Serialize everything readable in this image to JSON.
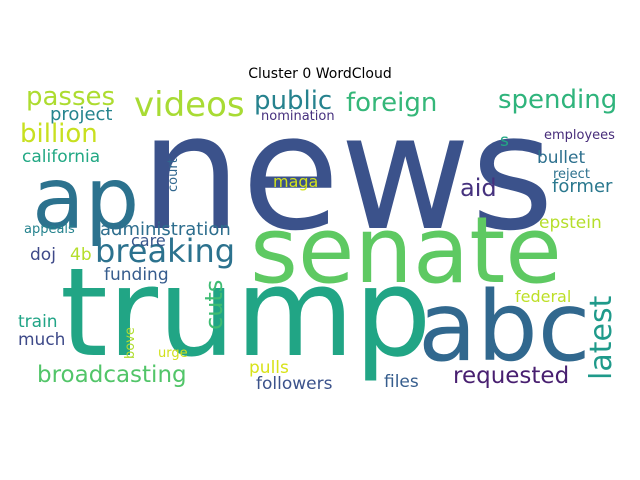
{
  "title": "Cluster 0 WordCloud",
  "words": [
    {
      "text": "news",
      "color": "#3b528b"
    },
    {
      "text": "senate",
      "color": "#5ec962"
    },
    {
      "text": "trump",
      "color": "#21a585"
    },
    {
      "text": "abc",
      "color": "#31688e"
    },
    {
      "text": "ap",
      "color": "#2c728e"
    },
    {
      "text": "videos",
      "color": "#a8db34"
    },
    {
      "text": "breaking",
      "color": "#2c728e"
    },
    {
      "text": "public",
      "color": "#26828e"
    },
    {
      "text": "foreign",
      "color": "#35b779"
    },
    {
      "text": "spending",
      "color": "#2fb47c"
    },
    {
      "text": "passes",
      "color": "#addc30"
    },
    {
      "text": "billion",
      "color": "#c8e020"
    },
    {
      "text": "project",
      "color": "#25848e"
    },
    {
      "text": "california",
      "color": "#22a884"
    },
    {
      "text": "latest",
      "color": "#1f9a8a"
    },
    {
      "text": "aid",
      "color": "#46327e"
    },
    {
      "text": "former",
      "color": "#2a788e"
    },
    {
      "text": "bullet",
      "color": "#2d708e"
    },
    {
      "text": "epstein",
      "color": "#b5de2b"
    },
    {
      "text": "requested",
      "color": "#481f70"
    },
    {
      "text": "administration",
      "color": "#2e6e8e"
    },
    {
      "text": "care",
      "color": "#39568c"
    },
    {
      "text": "cuts",
      "color": "#3fbc73"
    },
    {
      "text": "funding",
      "color": "#365c8d"
    },
    {
      "text": "maga",
      "color": "#d2e21b"
    },
    {
      "text": "doj",
      "color": "#3e4989"
    },
    {
      "text": "4b",
      "color": "#b5de2b"
    },
    {
      "text": "appeals",
      "color": "#25838e"
    },
    {
      "text": "train",
      "color": "#20a486"
    },
    {
      "text": "much",
      "color": "#3e4a89"
    },
    {
      "text": "broadcasting",
      "color": "#52c569"
    },
    {
      "text": "followers",
      "color": "#3b528b"
    },
    {
      "text": "files",
      "color": "#365d8d"
    },
    {
      "text": "pulls",
      "color": "#d8e219"
    },
    {
      "text": "federal",
      "color": "#bddf26"
    },
    {
      "text": "nomination",
      "color": "#46307e"
    },
    {
      "text": "employees",
      "color": "#472c7a"
    },
    {
      "text": "reject",
      "color": "#2d718e"
    },
    {
      "text": "court",
      "color": "#31678e"
    },
    {
      "text": "s",
      "color": "#22a884"
    },
    {
      "text": "bove",
      "color": "#b0dd2f"
    },
    {
      "text": "urge",
      "color": "#d0e11c"
    }
  ]
}
